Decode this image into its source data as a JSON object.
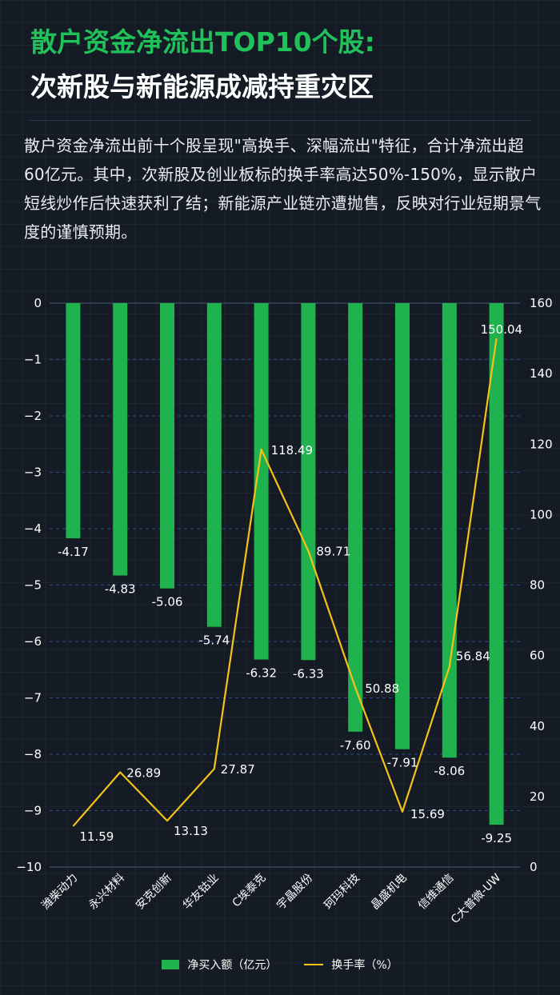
{
  "title_line1": "散户资金净流出TOP10个股:",
  "title_line2": "次新股与新能源成减持重灾区",
  "description": "散户资金净流出前十个股呈现\"高换手、深幅流出\"特征，合计净流出超60亿元。其中，次新股及创业板标的换手率高达50%-150%，显示散户短线炒作后快速获利了结；新能源产业链亦遭抛售，反映对行业短期景气度的谨慎预期。",
  "colors": {
    "bar": "#1fb24f",
    "line": "#f5c218",
    "title_green": "#20c15a"
  },
  "chart_data": {
    "type": "bar",
    "categories": [
      "潍柴动力",
      "永兴材料",
      "安克创新",
      "华友钴业",
      "C埃泰克",
      "宇晶股份",
      "珂玛科技",
      "晶盛机电",
      "信维通信",
      "C大普微-UW"
    ],
    "series": [
      {
        "name": "净买入额（亿元）",
        "type": "bar",
        "axis": "left",
        "values": [
          -4.17,
          -4.83,
          -5.06,
          -5.74,
          -6.32,
          -6.33,
          -7.6,
          -7.91,
          -8.06,
          -9.25
        ]
      },
      {
        "name": "换手率（%）",
        "type": "line",
        "axis": "right",
        "values": [
          11.59,
          26.89,
          13.13,
          27.87,
          118.49,
          89.71,
          50.88,
          15.69,
          56.84,
          150.04
        ]
      }
    ],
    "bar_labels": [
      "-4.17",
      "-4.83",
      "-5.06",
      "-5.74",
      "-6.32",
      "-6.33",
      "-7.60",
      "-7.91",
      "-8.06",
      "-9.25"
    ],
    "line_labels": [
      "11.59",
      "26.89",
      "13.13",
      "27.87",
      "118.49",
      "89.71",
      "50.88",
      "15.69",
      "56.84",
      "150.04"
    ],
    "left_axis": {
      "ylim": [
        -10,
        0
      ],
      "ticks": [
        "0",
        "−1",
        "−2",
        "−3",
        "−4",
        "−5",
        "−6",
        "−7",
        "−8",
        "−9",
        "−10"
      ]
    },
    "right_axis": {
      "ylim": [
        0,
        160
      ],
      "ticks": [
        "160",
        "140",
        "120",
        "100",
        "80",
        "60",
        "40",
        "20",
        "0"
      ]
    },
    "grid": true,
    "legend_position": "bottom"
  }
}
